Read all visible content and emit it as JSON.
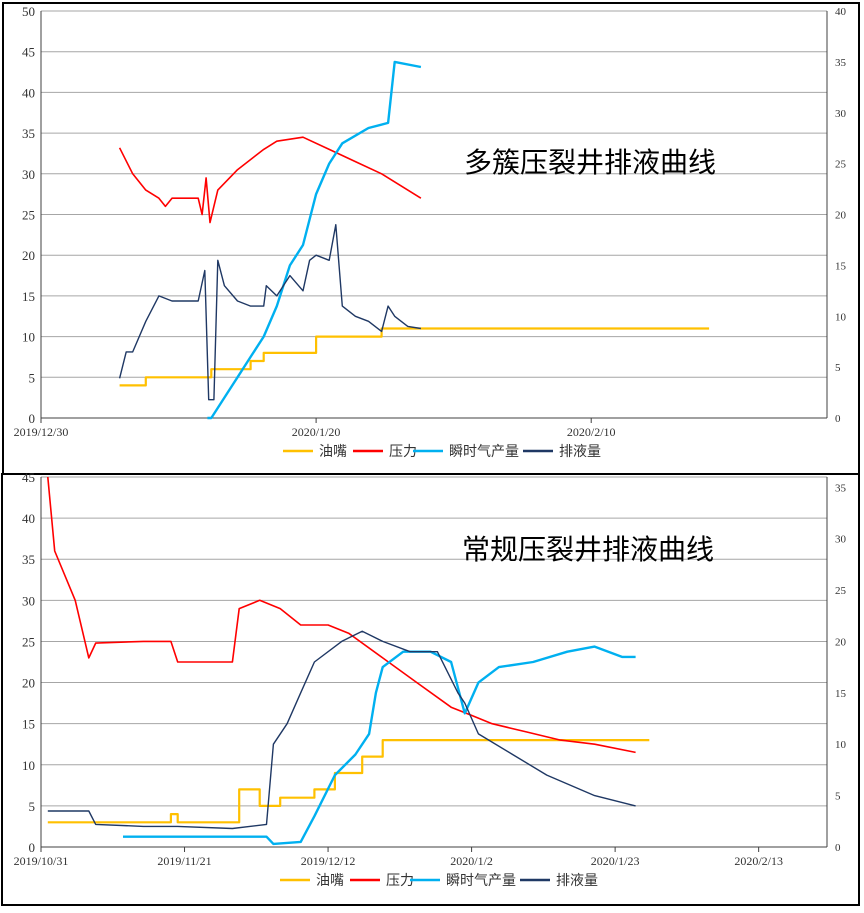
{
  "chart_data": [
    {
      "type": "line",
      "title": "多簇压裂井排液曲线",
      "x": {
        "type": "date",
        "range": [
          "2019-12-30",
          "2020-02-28"
        ],
        "ticks": [
          "2019/12/30",
          "2020/1/20",
          "2020/2/10"
        ]
      },
      "y_left": {
        "range": [
          0,
          50
        ],
        "ticks": [
          0,
          5,
          10,
          15,
          20,
          25,
          30,
          35,
          40,
          45,
          50
        ]
      },
      "y_right": {
        "range": [
          0,
          40
        ],
        "ticks": [
          0,
          5,
          10,
          15,
          20,
          25,
          30,
          35,
          40
        ]
      },
      "grid": true,
      "legend": "bottom",
      "series": [
        {
          "name": "油嘴",
          "color": "#FFC000",
          "axis": "left",
          "step": true,
          "points": [
            [
              "2020-01-05",
              4
            ],
            [
              "2020-01-07",
              4
            ],
            [
              "2020-01-07",
              5
            ],
            [
              "2020-01-12",
              5
            ],
            [
              "2020-01-12",
              6
            ],
            [
              "2020-01-15",
              6
            ],
            [
              "2020-01-15",
              7
            ],
            [
              "2020-01-16",
              7
            ],
            [
              "2020-01-16",
              8
            ],
            [
              "2020-01-20",
              8
            ],
            [
              "2020-01-20",
              10
            ],
            [
              "2020-01-25",
              10
            ],
            [
              "2020-01-25",
              11
            ],
            [
              "2020-02-19",
              11
            ]
          ]
        },
        {
          "name": "压力",
          "color": "#FF0000",
          "axis": "left",
          "points": [
            [
              "2020-01-05",
              33.2
            ],
            [
              "2020-01-06",
              30
            ],
            [
              "2020-01-07",
              28
            ],
            [
              "2020-01-08",
              27
            ],
            [
              "2020-01-08.5",
              26
            ],
            [
              "2020-01-09",
              27
            ],
            [
              "2020-01-11",
              27
            ],
            [
              "2020-01-11.3",
              25
            ],
            [
              "2020-01-11.6",
              29.5
            ],
            [
              "2020-01-11.9",
              24
            ],
            [
              "2020-01-12.5",
              28
            ],
            [
              "2020-01-14",
              30.5
            ],
            [
              "2020-01-16",
              33
            ],
            [
              "2020-01-17",
              34
            ],
            [
              "2020-01-19",
              34.5
            ],
            [
              "2020-01-21",
              33
            ],
            [
              "2020-01-23",
              31.5
            ],
            [
              "2020-01-25",
              30
            ],
            [
              "2020-01-27",
              28
            ],
            [
              "2020-01-28",
              27
            ]
          ]
        },
        {
          "name": "瞬时气产量",
          "color": "#00B0F0",
          "axis": "right",
          "points": [
            [
              "2020-01-11.7",
              0
            ],
            [
              "2020-01-12",
              0
            ],
            [
              "2020-01-13",
              2
            ],
            [
              "2020-01-14",
              4
            ],
            [
              "2020-01-15",
              6
            ],
            [
              "2020-01-16",
              8
            ],
            [
              "2020-01-17",
              11
            ],
            [
              "2020-01-18",
              15
            ],
            [
              "2020-01-19",
              17
            ],
            [
              "2020-01-20",
              22
            ],
            [
              "2020-01-21",
              25
            ],
            [
              "2020-01-22",
              27
            ],
            [
              "2020-01-24",
              28.5
            ],
            [
              "2020-01-25.5",
              29
            ],
            [
              "2020-01-26",
              35
            ],
            [
              "2020-01-28",
              34.5
            ]
          ]
        },
        {
          "name": "排液量",
          "color": "#1F3864",
          "axis": "right",
          "points": [
            [
              "2020-01-05",
              3.9
            ],
            [
              "2020-01-05.5",
              6.5
            ],
            [
              "2020-01-06",
              6.5
            ],
            [
              "2020-01-07",
              9.5
            ],
            [
              "2020-01-08",
              12
            ],
            [
              "2020-01-09",
              11.5
            ],
            [
              "2020-01-10",
              11.5
            ],
            [
              "2020-01-11",
              11.5
            ],
            [
              "2020-01-11.5",
              14.5
            ],
            [
              "2020-01-11.8",
              1.8
            ],
            [
              "2020-01-12.2",
              1.8
            ],
            [
              "2020-01-12.5",
              15.5
            ],
            [
              "2020-01-13",
              13
            ],
            [
              "2020-01-14",
              11.5
            ],
            [
              "2020-01-15",
              11
            ],
            [
              "2020-01-16",
              11
            ],
            [
              "2020-01-16.2",
              13
            ],
            [
              "2020-01-17",
              12
            ],
            [
              "2020-01-18",
              14
            ],
            [
              "2020-01-19",
              12.5
            ],
            [
              "2020-01-19.5",
              15.5
            ],
            [
              "2020-01-20",
              16
            ],
            [
              "2020-01-21",
              15.5
            ],
            [
              "2020-01-21.5",
              19
            ],
            [
              "2020-01-22",
              11
            ],
            [
              "2020-01-23",
              10
            ],
            [
              "2020-01-24",
              9.5
            ],
            [
              "2020-01-25",
              8.5
            ],
            [
              "2020-01-25.5",
              11
            ],
            [
              "2020-01-26",
              10
            ],
            [
              "2020-01-27",
              9
            ],
            [
              "2020-01-28",
              8.8
            ]
          ]
        }
      ]
    },
    {
      "type": "line",
      "title": "常规压裂井排液曲线",
      "x": {
        "type": "date",
        "range": [
          "2019-10-31",
          "2020-02-23"
        ],
        "ticks": [
          "2019/10/31",
          "2019/11/21",
          "2019/12/12",
          "2020/1/2",
          "2020/1/23",
          "2020/2/13"
        ]
      },
      "y_left": {
        "range": [
          0,
          45
        ],
        "ticks": [
          0,
          5,
          10,
          15,
          20,
          25,
          30,
          35,
          40,
          45
        ]
      },
      "y_right": {
        "range": [
          0,
          36
        ],
        "ticks": [
          0,
          5,
          10,
          15,
          20,
          25,
          30,
          35
        ]
      },
      "grid": true,
      "legend": "bottom",
      "series": [
        {
          "name": "油嘴",
          "color": "#FFC000",
          "axis": "left",
          "step": true,
          "points": [
            [
              "2019-11-01",
              3
            ],
            [
              "2019-11-19",
              3
            ],
            [
              "2019-11-19",
              4
            ],
            [
              "2019-11-20",
              4
            ],
            [
              "2019-11-20",
              3
            ],
            [
              "2019-11-29",
              3
            ],
            [
              "2019-11-29",
              7
            ],
            [
              "2019-12-02",
              7
            ],
            [
              "2019-12-02",
              5
            ],
            [
              "2019-12-05",
              5
            ],
            [
              "2019-12-05",
              6
            ],
            [
              "2019-12-10",
              6
            ],
            [
              "2019-12-10",
              7
            ],
            [
              "2019-12-13",
              7
            ],
            [
              "2019-12-13",
              9
            ],
            [
              "2019-12-17",
              9
            ],
            [
              "2019-12-17",
              11
            ],
            [
              "2019-12-20",
              11
            ],
            [
              "2019-12-20",
              13
            ],
            [
              "2020-01-28",
              13
            ]
          ]
        },
        {
          "name": "压力",
          "color": "#FF0000",
          "axis": "left",
          "points": [
            [
              "2019-11-01",
              45
            ],
            [
              "2019-11-02",
              36
            ],
            [
              "2019-11-05",
              30
            ],
            [
              "2019-11-07",
              23
            ],
            [
              "2019-11-08",
              24.8
            ],
            [
              "2019-11-15",
              25
            ],
            [
              "2019-11-19",
              25
            ],
            [
              "2019-11-20",
              22.5
            ],
            [
              "2019-11-23",
              22.5
            ],
            [
              "2019-11-28",
              22.5
            ],
            [
              "2019-11-29",
              29
            ],
            [
              "2019-12-02",
              30
            ],
            [
              "2019-12-05",
              29
            ],
            [
              "2019-12-08",
              27
            ],
            [
              "2019-12-12",
              27
            ],
            [
              "2019-12-15",
              26
            ],
            [
              "2019-12-20",
              23
            ],
            [
              "2019-12-25",
              20
            ],
            [
              "2019-12-30",
              17
            ],
            [
              "2020-01-02",
              16
            ],
            [
              "2020-01-05",
              15
            ],
            [
              "2020-01-10",
              14
            ],
            [
              "2020-01-15",
              13
            ],
            [
              "2020-01-20",
              12.5
            ],
            [
              "2020-01-26",
              11.5
            ]
          ]
        },
        {
          "name": "瞬时气产量",
          "color": "#00B0F0",
          "axis": "right",
          "points": [
            [
              "2019-11-12",
              1
            ],
            [
              "2019-11-20",
              1
            ],
            [
              "2019-11-29",
              1
            ],
            [
              "2019-12-03",
              1
            ],
            [
              "2019-12-04",
              0.3
            ],
            [
              "2019-12-08",
              0.5
            ],
            [
              "2019-12-10",
              3
            ],
            [
              "2019-12-13",
              7
            ],
            [
              "2019-12-16",
              9
            ],
            [
              "2019-12-18",
              11
            ],
            [
              "2019-12-19",
              15
            ],
            [
              "2019-12-20",
              17.5
            ],
            [
              "2019-12-23",
              19
            ],
            [
              "2019-12-27",
              19
            ],
            [
              "2019-12-30",
              18
            ],
            [
              "2020-01-01",
              13
            ],
            [
              "2020-01-03",
              16
            ],
            [
              "2020-01-06",
              17.5
            ],
            [
              "2020-01-11",
              18
            ],
            [
              "2020-01-16",
              19
            ],
            [
              "2020-01-20",
              19.5
            ],
            [
              "2020-01-24",
              18.5
            ],
            [
              "2020-01-26",
              18.5
            ]
          ]
        },
        {
          "name": "排液量",
          "color": "#1F3864",
          "axis": "right",
          "points": [
            [
              "2019-11-01",
              3.5
            ],
            [
              "2019-11-07",
              3.5
            ],
            [
              "2019-11-08",
              2.2
            ],
            [
              "2019-11-15",
              2
            ],
            [
              "2019-11-20",
              2
            ],
            [
              "2019-11-28",
              1.8
            ],
            [
              "2019-12-03",
              2.2
            ],
            [
              "2019-12-04",
              10
            ],
            [
              "2019-12-06",
              12
            ],
            [
              "2019-12-08",
              15
            ],
            [
              "2019-12-10",
              18
            ],
            [
              "2019-12-14",
              20
            ],
            [
              "2019-12-17",
              21
            ],
            [
              "2019-12-20",
              20
            ],
            [
              "2019-12-24",
              19
            ],
            [
              "2019-12-28",
              19
            ],
            [
              "2019-12-31",
              15
            ],
            [
              "2020-01-01",
              14
            ],
            [
              "2020-01-03",
              11
            ],
            [
              "2020-01-08",
              9
            ],
            [
              "2020-01-13",
              7
            ],
            [
              "2020-01-20",
              5
            ],
            [
              "2020-01-26",
              4
            ]
          ]
        }
      ]
    }
  ]
}
